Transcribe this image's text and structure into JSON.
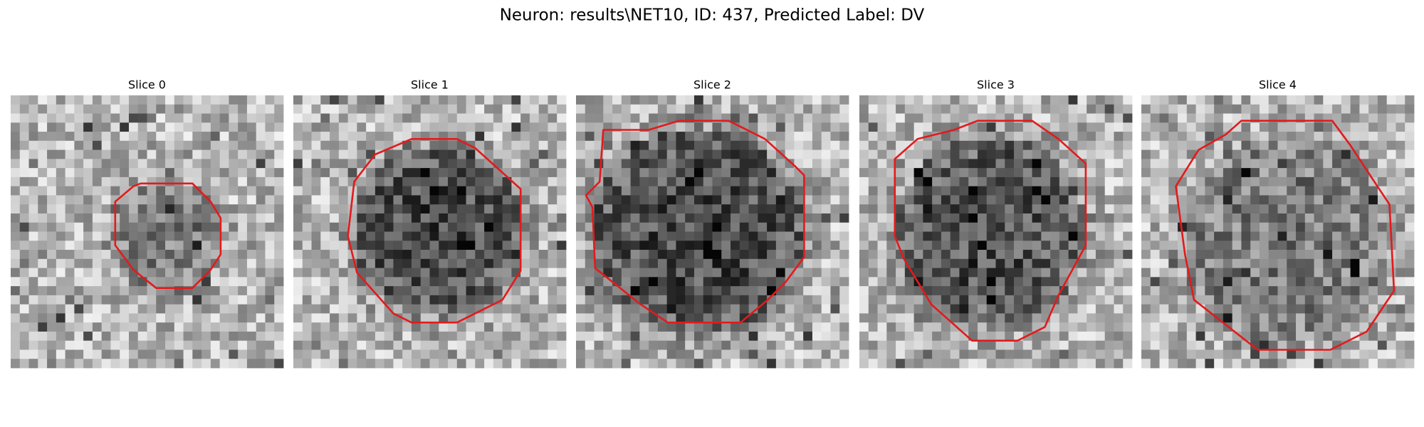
{
  "title": "Neuron: results\\NET10, ID: 437, Predicted Label: DV",
  "panels": [
    {
      "title": "Slice 0"
    },
    {
      "title": "Slice 1"
    },
    {
      "title": "Slice 2"
    },
    {
      "title": "Slice 3"
    },
    {
      "title": "Slice 4"
    }
  ]
}
